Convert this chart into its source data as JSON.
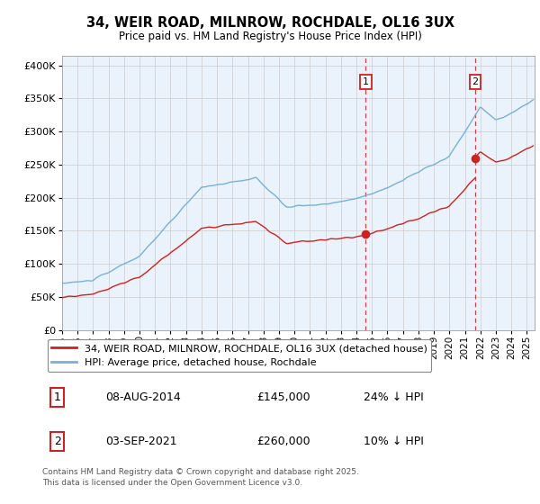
{
  "title_line1": "34, WEIR ROAD, MILNROW, ROCHDALE, OL16 3UX",
  "title_line2": "Price paid vs. HM Land Registry's House Price Index (HPI)",
  "ytick_values": [
    0,
    50000,
    100000,
    150000,
    200000,
    250000,
    300000,
    350000,
    400000
  ],
  "ylim": [
    0,
    415000
  ],
  "xlim_start": 1995.0,
  "xlim_end": 2025.5,
  "hpi_color": "#7ab0d4",
  "price_color": "#cc2222",
  "vline_color": "#cc2222",
  "marker1_x": 2014.6,
  "marker1_y": 145000,
  "marker2_x": 2021.67,
  "marker2_y": 260000,
  "vline1_x": 2014.6,
  "vline2_x": 2021.67,
  "legend_label_red": "34, WEIR ROAD, MILNROW, ROCHDALE, OL16 3UX (detached house)",
  "legend_label_blue": "HPI: Average price, detached house, Rochdale",
  "annotation1_num": "1",
  "annotation1_date": "08-AUG-2014",
  "annotation1_price": "£145,000",
  "annotation1_hpi": "24% ↓ HPI",
  "annotation2_num": "2",
  "annotation2_date": "03-SEP-2021",
  "annotation2_price": "£260,000",
  "annotation2_hpi": "10% ↓ HPI",
  "footnote": "Contains HM Land Registry data © Crown copyright and database right 2025.\nThis data is licensed under the Open Government Licence v3.0.",
  "background_color": "#ffffff",
  "grid_color": "#cccccc",
  "plot_bg_color": "#eaf3fb"
}
